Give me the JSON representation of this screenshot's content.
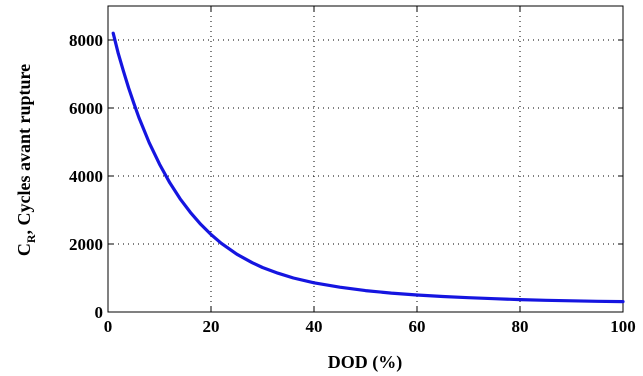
{
  "chart_data": {
    "type": "line",
    "title": "",
    "xlabel": "DOD (%)",
    "ylabel": {
      "main": "C",
      "subscript": "R",
      "rest": ", Cycles avant rupture"
    },
    "xlim": [
      0,
      100
    ],
    "ylim": [
      0,
      9000
    ],
    "xticks": [
      0,
      20,
      40,
      60,
      80,
      100
    ],
    "yticks": [
      0,
      2000,
      4000,
      6000,
      8000
    ],
    "grid": true,
    "grid_style": "dotted",
    "legend": "none",
    "series": [
      {
        "color": "#1515e0",
        "x": [
          1,
          2,
          3,
          4,
          5,
          6,
          8,
          10,
          12,
          14,
          16,
          18,
          20,
          22,
          25,
          28,
          30,
          33,
          36,
          40,
          45,
          50,
          55,
          60,
          65,
          70,
          75,
          80,
          85,
          90,
          95,
          100
        ],
        "y": [
          8200,
          7600,
          7080,
          6590,
          6140,
          5720,
          4980,
          4350,
          3800,
          3330,
          2930,
          2580,
          2280,
          2020,
          1700,
          1450,
          1310,
          1140,
          1000,
          860,
          730,
          630,
          555,
          500,
          455,
          420,
          390,
          365,
          345,
          330,
          315,
          305
        ]
      }
    ]
  }
}
